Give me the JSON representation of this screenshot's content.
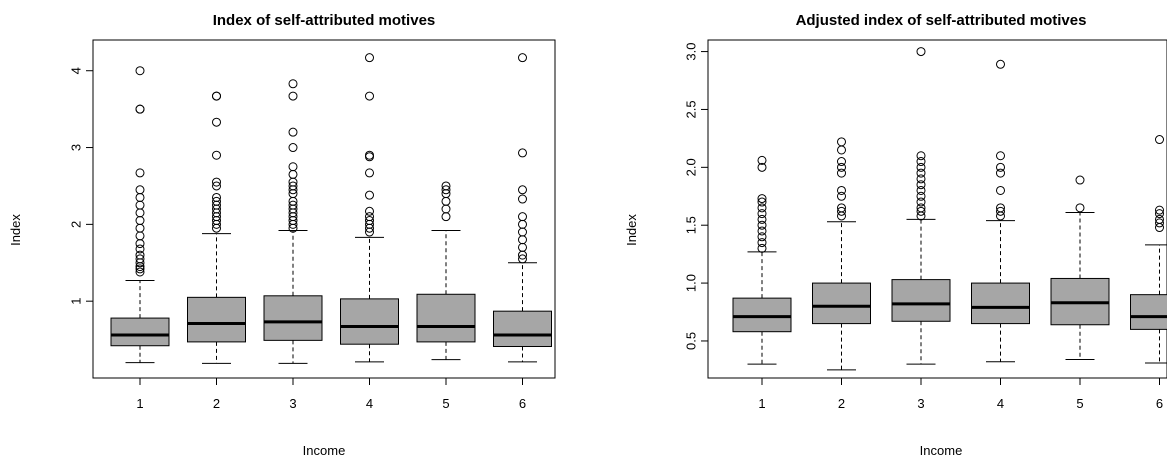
{
  "chart_data": [
    {
      "type": "boxplot",
      "title": "Index of self-attributed motives",
      "xlabel": "Income",
      "ylabel": "Index",
      "categories": [
        "1",
        "2",
        "3",
        "4",
        "5",
        "6"
      ],
      "yticks": [
        "1",
        "2",
        "3",
        "4"
      ],
      "ylim": [
        0.0,
        4.4
      ],
      "box_color": "#a6a6a6",
      "boxes": [
        {
          "category": "1",
          "whisker_low": 0.2,
          "q1": 0.42,
          "median": 0.56,
          "q3": 0.78,
          "whisker_high": 1.27,
          "outliers": [
            1.38,
            1.42,
            1.45,
            1.5,
            1.55,
            1.6,
            1.68,
            1.75,
            1.85,
            1.95,
            2.05,
            2.15,
            2.25,
            2.35,
            2.45,
            2.67,
            3.5,
            3.5,
            4.0
          ]
        },
        {
          "category": "2",
          "whisker_low": 0.19,
          "q1": 0.47,
          "median": 0.71,
          "q3": 1.05,
          "whisker_high": 1.88,
          "outliers": [
            1.95,
            2.0,
            2.05,
            2.1,
            2.15,
            2.2,
            2.25,
            2.3,
            2.35,
            2.5,
            2.55,
            2.9,
            3.33,
            3.67,
            3.67
          ]
        },
        {
          "category": "3",
          "whisker_low": 0.19,
          "q1": 0.49,
          "median": 0.73,
          "q3": 1.07,
          "whisker_high": 1.92,
          "outliers": [
            1.95,
            2.0,
            2.05,
            2.1,
            2.15,
            2.2,
            2.25,
            2.3,
            2.4,
            2.45,
            2.5,
            2.55,
            2.65,
            2.75,
            3.0,
            3.2,
            3.67,
            3.83
          ]
        },
        {
          "category": "4",
          "whisker_low": 0.21,
          "q1": 0.44,
          "median": 0.67,
          "q3": 1.03,
          "whisker_high": 1.83,
          "outliers": [
            1.9,
            1.95,
            2.0,
            2.05,
            2.1,
            2.17,
            2.38,
            2.67,
            2.88,
            2.9,
            3.67,
            4.17
          ]
        },
        {
          "category": "5",
          "whisker_low": 0.24,
          "q1": 0.47,
          "median": 0.67,
          "q3": 1.09,
          "whisker_high": 1.92,
          "outliers": [
            2.1,
            2.2,
            2.3,
            2.4,
            2.45,
            2.5
          ]
        },
        {
          "category": "6",
          "whisker_low": 0.21,
          "q1": 0.41,
          "median": 0.56,
          "q3": 0.87,
          "whisker_high": 1.5,
          "outliers": [
            1.55,
            1.6,
            1.7,
            1.8,
            1.9,
            2.0,
            2.1,
            2.33,
            2.45,
            2.93,
            4.17
          ]
        }
      ]
    },
    {
      "type": "boxplot",
      "title": "Adjusted index of self-attributed motives",
      "xlabel": "Income",
      "ylabel": "Index",
      "categories": [
        "1",
        "2",
        "3",
        "4",
        "5",
        "6"
      ],
      "yticks": [
        "0.5",
        "1.0",
        "1.5",
        "2.0",
        "2.5",
        "3.0"
      ],
      "ylim": [
        0.18,
        3.1
      ],
      "box_color": "#a6a6a6",
      "boxes": [
        {
          "category": "1",
          "whisker_low": 0.3,
          "q1": 0.58,
          "median": 0.71,
          "q3": 0.87,
          "whisker_high": 1.27,
          "outliers": [
            1.3,
            1.35,
            1.4,
            1.45,
            1.5,
            1.55,
            1.6,
            1.65,
            1.7,
            1.73,
            2.0,
            2.06
          ]
        },
        {
          "category": "2",
          "whisker_low": 0.25,
          "q1": 0.65,
          "median": 0.8,
          "q3": 1.0,
          "whisker_high": 1.53,
          "outliers": [
            1.58,
            1.62,
            1.65,
            1.75,
            1.8,
            1.95,
            2.0,
            2.05,
            2.15,
            2.22
          ]
        },
        {
          "category": "3",
          "whisker_low": 0.3,
          "q1": 0.67,
          "median": 0.82,
          "q3": 1.03,
          "whisker_high": 1.55,
          "outliers": [
            1.58,
            1.62,
            1.65,
            1.7,
            1.75,
            1.8,
            1.85,
            1.9,
            1.95,
            2.0,
            2.05,
            2.1,
            3.0
          ]
        },
        {
          "category": "4",
          "whisker_low": 0.32,
          "q1": 0.65,
          "median": 0.79,
          "q3": 1.0,
          "whisker_high": 1.54,
          "outliers": [
            1.58,
            1.62,
            1.65,
            1.8,
            1.95,
            2.0,
            2.1,
            2.89
          ]
        },
        {
          "category": "5",
          "whisker_low": 0.34,
          "q1": 0.64,
          "median": 0.83,
          "q3": 1.04,
          "whisker_high": 1.61,
          "outliers": [
            1.65,
            1.89
          ]
        },
        {
          "category": "6",
          "whisker_low": 0.31,
          "q1": 0.6,
          "median": 0.71,
          "q3": 0.9,
          "whisker_high": 1.33,
          "outliers": [
            1.48,
            1.52,
            1.55,
            1.6,
            1.63,
            2.24
          ]
        }
      ]
    }
  ]
}
